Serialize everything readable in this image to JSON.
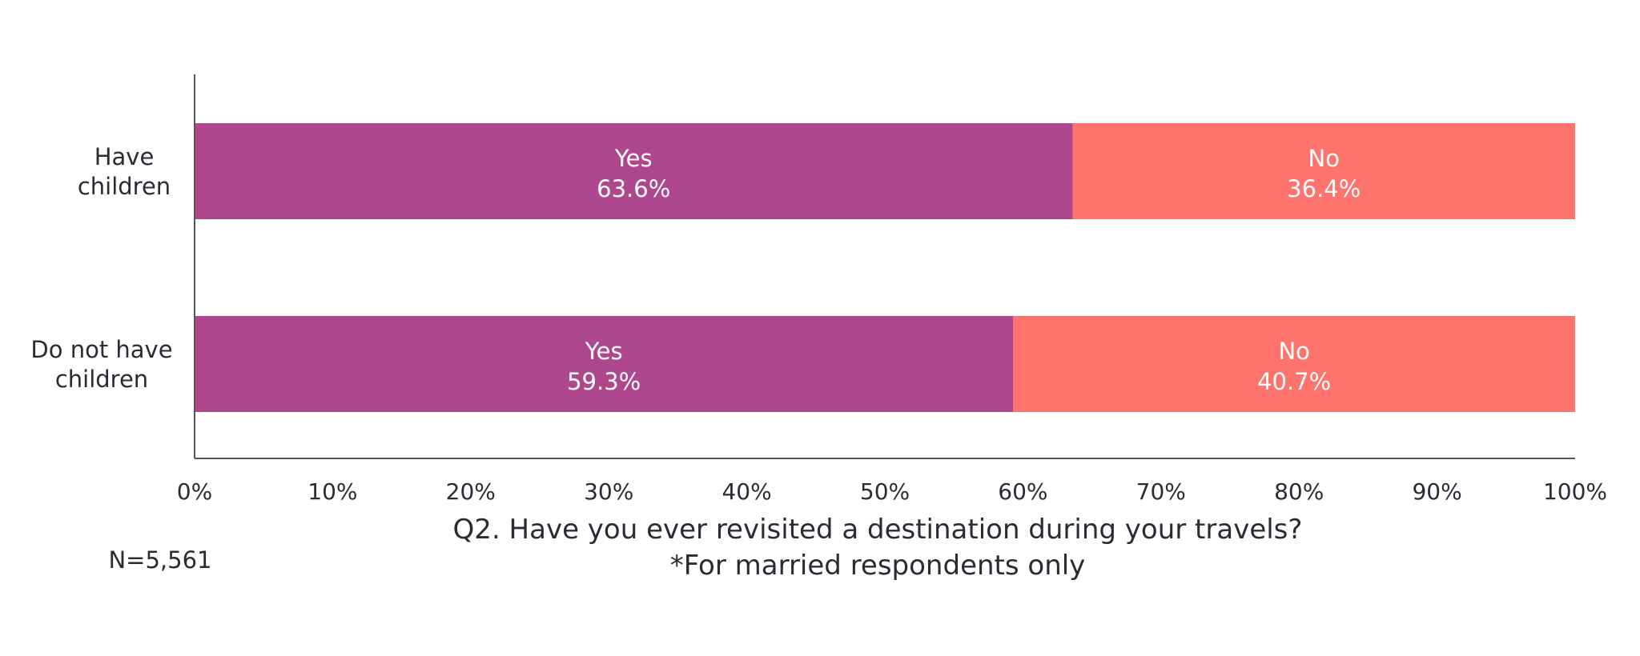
{
  "chart_data": {
    "type": "bar",
    "orientation": "horizontal",
    "stacked": true,
    "categories": [
      "Have children",
      "Do not have children"
    ],
    "category_lines": [
      [
        "Have",
        "children"
      ],
      [
        "Do not have",
        "children"
      ]
    ],
    "series": [
      {
        "name": "Yes",
        "values": [
          63.6,
          59.3
        ],
        "color": "#ae478d"
      },
      {
        "name": "No",
        "values": [
          36.4,
          40.7
        ],
        "color": "#fe736b"
      }
    ],
    "data_labels": [
      [
        "63.6%",
        "59.3%"
      ],
      [
        "36.4%",
        "40.7%"
      ]
    ],
    "xlim": [
      0,
      100
    ],
    "x_ticks": [
      "0%",
      "10%",
      "20%",
      "30%",
      "40%",
      "50%",
      "60%",
      "70%",
      "80%",
      "90%",
      "100%"
    ],
    "title": "Q2. Have you ever revisited a destination during your travels?",
    "subtitle": "*For married respondents only",
    "note": "N=5,561",
    "grid": false,
    "legend": "none"
  }
}
